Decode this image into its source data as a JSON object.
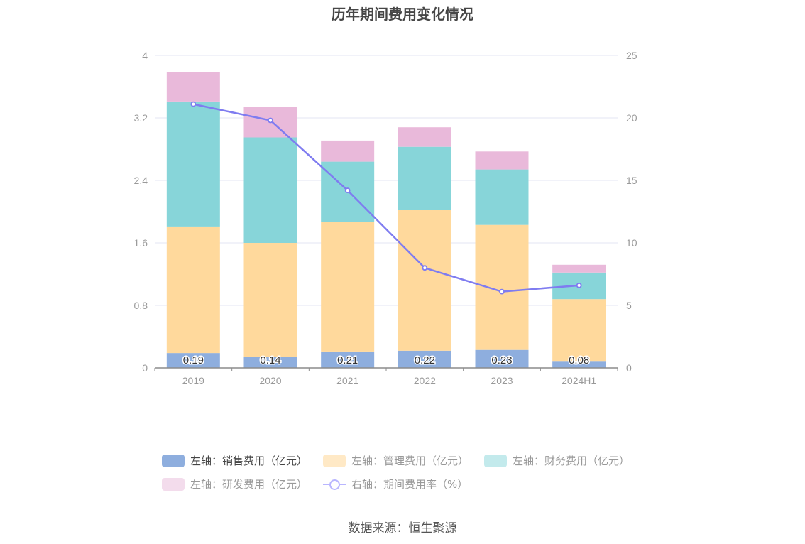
{
  "chart_data": {
    "type": "bar",
    "title": "历年期间费用变化情况",
    "categories": [
      "2019",
      "2020",
      "2021",
      "2022",
      "2023",
      "2024H1"
    ],
    "stacked": true,
    "series": [
      {
        "name": "左轴：销售费用（亿元）",
        "axis": "left",
        "color": "#8eaede",
        "values": [
          0.19,
          0.14,
          0.21,
          0.22,
          0.23,
          0.08
        ],
        "labels": [
          "0.19",
          "0.14",
          "0.21",
          "0.22",
          "0.23",
          "0.08"
        ]
      },
      {
        "name": "左轴：管理费用（亿元）",
        "axis": "left",
        "color": "#ffd99c",
        "values": [
          1.62,
          1.46,
          1.66,
          1.8,
          1.6,
          0.8
        ]
      },
      {
        "name": "左轴：财务费用（亿元）",
        "axis": "left",
        "color": "#87d5d9",
        "values": [
          1.6,
          1.35,
          0.77,
          0.81,
          0.71,
          0.34
        ]
      },
      {
        "name": "左轴：研发费用（亿元）",
        "axis": "left",
        "color": "#e9b9da",
        "values": [
          0.38,
          0.39,
          0.27,
          0.25,
          0.23,
          0.1
        ]
      },
      {
        "name": "右轴：期间费用率（%）",
        "axis": "right",
        "type": "line",
        "color": "#7f7cf0",
        "values": [
          21.1,
          19.8,
          14.2,
          8.0,
          6.1,
          6.6
        ]
      }
    ],
    "y_left": {
      "min": 0,
      "max": 4,
      "ticks": [
        "0",
        "0.8",
        "1.6",
        "2.4",
        "3.2",
        "4"
      ]
    },
    "y_right": {
      "min": 0,
      "max": 25,
      "ticks": [
        "0",
        "5",
        "10",
        "15",
        "20",
        "25"
      ]
    },
    "grid": true,
    "legend_position": "bottom"
  },
  "legend": [
    {
      "label": "左轴：销售费用（亿元）",
      "color": "#8eaede",
      "text_color": "#444444",
      "kind": "bar"
    },
    {
      "label": "左轴：管理费用（亿元）",
      "color": "#ffe9c6",
      "text_color": "#999999",
      "kind": "bar"
    },
    {
      "label": "左轴：财务费用（亿元）",
      "color": "#c3eaec",
      "text_color": "#999999",
      "kind": "bar"
    },
    {
      "label": "左轴：研发费用（亿元）",
      "color": "#f3dcec",
      "text_color": "#999999",
      "kind": "bar"
    },
    {
      "label": "右轴：期间费用率（%）",
      "color": "#b9b6ff",
      "text_color": "#999999",
      "kind": "line"
    }
  ],
  "source": "数据来源：恒生聚源"
}
